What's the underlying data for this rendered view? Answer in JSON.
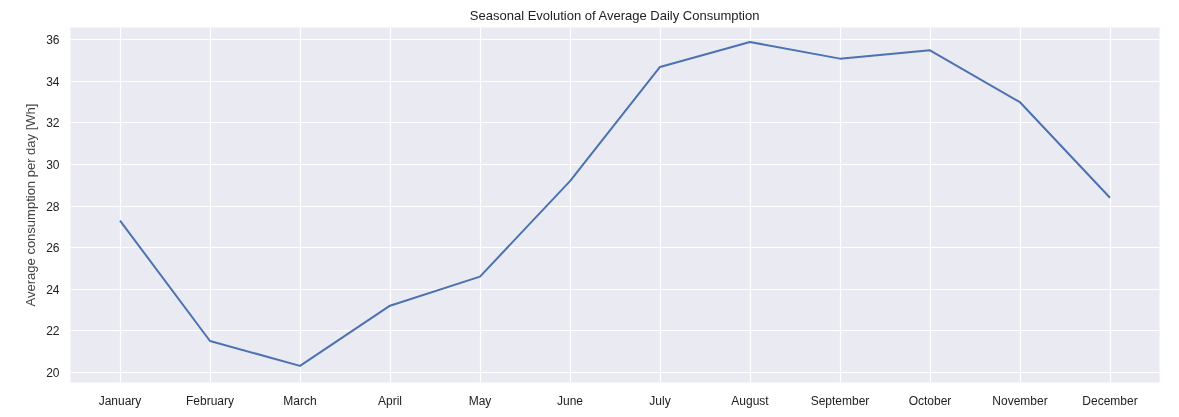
{
  "chart_data": {
    "type": "line",
    "title": "Seasonal Evolution of Average Daily Consumption",
    "ylabel": "Average consumption per day [Wh]",
    "categories": [
      "January",
      "February",
      "March",
      "April",
      "May",
      "June",
      "July",
      "August",
      "September",
      "October",
      "November",
      "December"
    ],
    "series": [
      {
        "color": "#4c72b0",
        "values": [
          27.3,
          21.5,
          20.3,
          23.2,
          24.6,
          29.2,
          34.7,
          35.9,
          35.1,
          35.5,
          33.0,
          28.4
        ]
      }
    ],
    "ylim": [
      19.5,
      36.6
    ],
    "yticks": [
      20,
      22,
      24,
      26,
      28,
      30,
      32,
      34,
      36
    ],
    "grid": true,
    "marker": "none",
    "line_style": "solid"
  }
}
